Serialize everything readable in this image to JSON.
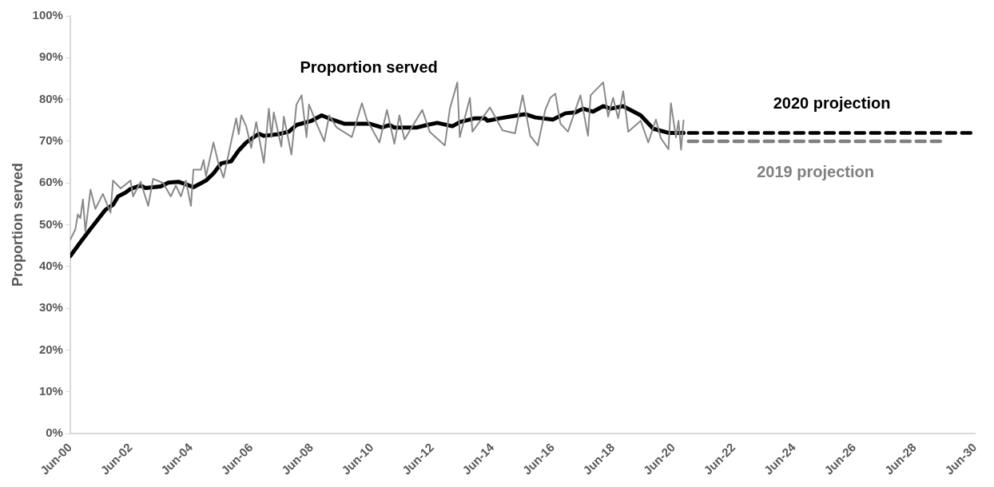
{
  "chart_data": {
    "type": "line",
    "ylabel": "Proportion served",
    "legend": false,
    "xlim": [
      "2000-06",
      "2030-06"
    ],
    "xticks": [
      {
        "value": "2000-06",
        "label": "Jun-00"
      },
      {
        "value": "2002-06",
        "label": "Jun-02"
      },
      {
        "value": "2004-06",
        "label": "Jun-04"
      },
      {
        "value": "2006-06",
        "label": "Jun-06"
      },
      {
        "value": "2008-06",
        "label": "Jun-08"
      },
      {
        "value": "2010-06",
        "label": "Jun-10"
      },
      {
        "value": "2012-06",
        "label": "Jun-12"
      },
      {
        "value": "2014-06",
        "label": "Jun-14"
      },
      {
        "value": "2016-06",
        "label": "Jun-16"
      },
      {
        "value": "2018-06",
        "label": "Jun-18"
      },
      {
        "value": "2020-06",
        "label": "Jun-20"
      },
      {
        "value": "2022-06",
        "label": "Jun-22"
      },
      {
        "value": "2024-06",
        "label": "Jun-24"
      },
      {
        "value": "2026-06",
        "label": "Jun-26"
      },
      {
        "value": "2028-06",
        "label": "Jun-28"
      },
      {
        "value": "2030-06",
        "label": "Jun-30"
      }
    ],
    "ylim": [
      0,
      100
    ],
    "yticks": [
      {
        "value": 0,
        "label": "0%"
      },
      {
        "value": 10,
        "label": "10%"
      },
      {
        "value": 20,
        "label": "20%"
      },
      {
        "value": 30,
        "label": "30%"
      },
      {
        "value": 40,
        "label": "40%"
      },
      {
        "value": 50,
        "label": "50%"
      },
      {
        "value": 60,
        "label": "60%"
      },
      {
        "value": 70,
        "label": "70%"
      },
      {
        "value": 80,
        "label": "80%"
      },
      {
        "value": 90,
        "label": "90%"
      },
      {
        "value": 100,
        "label": "100%"
      }
    ],
    "annotations": [
      "Proportion served"
    ],
    "series": [
      {
        "color": "#898989",
        "line_style": "solid",
        "x": [
          "2000-06",
          "2000-08",
          "2000-09",
          "2000-10",
          "2000-11",
          "2000-12",
          "2001-02",
          "2001-04",
          "2001-07",
          "2001-10",
          "2001-11",
          "2002-02",
          "2002-06",
          "2002-07",
          "2002-10",
          "2003-01",
          "2003-03",
          "2003-07",
          "2003-10",
          "2003-12",
          "2004-02",
          "2004-04",
          "2004-06",
          "2004-07",
          "2004-10",
          "2004-11",
          "2004-12",
          "2005-03",
          "2005-05",
          "2005-07",
          "2005-12",
          "2006-01",
          "2006-02",
          "2006-04",
          "2006-06",
          "2006-08",
          "2006-11",
          "2007-01",
          "2007-02",
          "2007-03",
          "2007-06",
          "2007-07",
          "2007-10",
          "2007-12",
          "2008-02",
          "2008-04",
          "2008-05",
          "2008-08",
          "2008-11",
          "2009-01",
          "2009-04",
          "2009-10",
          "2010-02",
          "2010-04",
          "2010-09",
          "2010-12",
          "2011-03",
          "2011-05",
          "2011-07",
          "2012-02",
          "2012-05",
          "2012-11",
          "2013-01",
          "2013-04",
          "2013-05",
          "2013-09",
          "2013-10",
          "2014-05",
          "2014-10",
          "2015-03",
          "2015-06",
          "2015-09",
          "2015-12",
          "2016-03",
          "2016-05",
          "2016-07",
          "2016-09",
          "2016-12",
          "2017-05",
          "2017-08",
          "2017-09",
          "2018-02",
          "2018-04",
          "2018-06",
          "2018-08",
          "2018-10",
          "2018-12",
          "2019-05",
          "2019-08",
          "2019-11",
          "2020-01",
          "2020-04",
          "2020-05",
          "2020-07",
          "2020-08",
          "2020-09",
          "2020-10"
        ],
        "values": [
          46.4,
          48.9,
          52.5,
          51.6,
          56.1,
          48.4,
          58.4,
          53.8,
          57.4,
          52.9,
          60.6,
          58.7,
          60.6,
          56.8,
          60.3,
          54.5,
          61,
          60,
          56.8,
          59.4,
          56.8,
          60.6,
          54.5,
          63.2,
          63.2,
          65.5,
          61.6,
          69.7,
          64.6,
          61.3,
          75.5,
          71.7,
          76.2,
          73.6,
          68.4,
          74.6,
          64.8,
          77.8,
          71,
          76.9,
          68.7,
          75.9,
          66.8,
          78.8,
          81,
          71,
          78.8,
          74.2,
          70,
          76.2,
          73.3,
          71,
          79.1,
          75.2,
          69.7,
          77.5,
          69.4,
          76.2,
          70.4,
          77.5,
          72.3,
          69,
          77.8,
          84.1,
          71,
          80.4,
          72.3,
          78.1,
          72.6,
          71.9,
          81,
          71.3,
          69,
          77.5,
          80.4,
          81.4,
          74.2,
          72.3,
          81,
          71.3,
          81,
          84.1,
          75.9,
          80.4,
          75.5,
          82,
          72.3,
          74.9,
          69.7,
          75.2,
          70.7,
          68.1,
          79.1,
          70.9,
          74.9,
          68,
          75
        ]
      },
      {
        "color": "#000000",
        "line_style": "solid",
        "x": [
          "2000-06",
          "2000-10",
          "2001-02",
          "2001-08",
          "2001-11",
          "2002-01",
          "2002-04",
          "2002-06",
          "2002-10",
          "2002-12",
          "2003-06",
          "2003-09",
          "2004-01",
          "2004-04",
          "2004-07",
          "2004-12",
          "2005-03",
          "2005-06",
          "2005-10",
          "2006-01",
          "2006-04",
          "2006-09",
          "2006-11",
          "2007-05",
          "2007-09",
          "2007-12",
          "2008-06",
          "2008-10",
          "2009-02",
          "2009-07",
          "2010-05",
          "2010-10",
          "2011-01",
          "2011-03",
          "2011-12",
          "2012-04",
          "2012-08",
          "2013-02",
          "2013-05",
          "2013-11",
          "2014-03",
          "2014-04",
          "2014-09",
          "2015-02",
          "2015-07",
          "2015-11",
          "2016-06",
          "2016-11",
          "2017-03",
          "2017-06",
          "2017-10",
          "2018-02",
          "2018-05",
          "2018-10",
          "2019-05",
          "2019-10",
          "2020-04",
          "2020-10"
        ],
        "values": [
          42.5,
          45.8,
          49,
          53.6,
          54.8,
          56.8,
          57.7,
          58.6,
          59.4,
          58.8,
          59.2,
          60.1,
          60.3,
          59.7,
          59,
          60.6,
          62.3,
          64.7,
          65.2,
          67.8,
          69.7,
          71.8,
          71.3,
          71.7,
          72.3,
          73.9,
          74.9,
          76.2,
          75.2,
          74.2,
          74.2,
          73.3,
          73.9,
          73.3,
          73.3,
          73.9,
          74.4,
          73.6,
          74.6,
          75.5,
          75.5,
          74.9,
          75.5,
          76,
          76.5,
          75.7,
          75.2,
          76.7,
          76.9,
          77.8,
          77.1,
          78.4,
          77.8,
          78.4,
          76.2,
          73,
          72,
          72
        ]
      },
      {
        "name": "2020 projection",
        "color": "#000000",
        "line_style": "dashed",
        "x": [
          "2020-12",
          "2030-06"
        ],
        "values": [
          72,
          72
        ]
      },
      {
        "name": "2019 projection",
        "color": "#808080",
        "line_style": "dashed",
        "x": [
          "2020-12",
          "2029-05"
        ],
        "values": [
          70,
          70
        ]
      }
    ]
  }
}
